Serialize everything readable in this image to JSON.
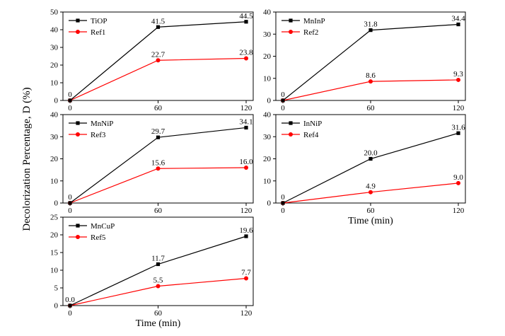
{
  "figure": {
    "ylabel": "Decolorization Percentage, D (%)"
  },
  "colors": {
    "black_series": "#000000",
    "red_series": "#ff0000"
  },
  "chart_data": [
    {
      "type": "line",
      "x": [
        0,
        60,
        120
      ],
      "xticks": [
        "0",
        "60",
        "120"
      ],
      "xlabel": "",
      "ylim": [
        0,
        50
      ],
      "yticks": [
        "0",
        "10",
        "20",
        "30",
        "40",
        "50"
      ],
      "legend_position": "top-left",
      "series": [
        {
          "name": "TiOP",
          "color": "#000000",
          "marker": "square",
          "values": [
            0,
            41.5,
            44.5
          ],
          "labels": [
            "0",
            "41.5",
            "44.5"
          ]
        },
        {
          "name": "Ref1",
          "color": "#ff0000",
          "marker": "circle",
          "values": [
            0,
            22.7,
            23.8
          ],
          "labels": [
            "",
            "22.7",
            "23.8"
          ]
        }
      ]
    },
    {
      "type": "line",
      "x": [
        0,
        60,
        120
      ],
      "xticks": [
        "0",
        "60",
        "120"
      ],
      "xlabel": "",
      "ylim": [
        0,
        40
      ],
      "yticks": [
        "0",
        "10",
        "20",
        "30",
        "40"
      ],
      "legend_position": "top-left",
      "series": [
        {
          "name": "MnInP",
          "color": "#000000",
          "marker": "square",
          "values": [
            0,
            31.8,
            34.4
          ],
          "labels": [
            "0",
            "31.8",
            "34.4"
          ]
        },
        {
          "name": "Ref2",
          "color": "#ff0000",
          "marker": "circle",
          "values": [
            0,
            8.6,
            9.3
          ],
          "labels": [
            "",
            "8.6",
            "9.3"
          ]
        }
      ]
    },
    {
      "type": "line",
      "x": [
        0,
        60,
        120
      ],
      "xticks": [
        "0",
        "60",
        "120"
      ],
      "xlabel": "",
      "ylim": [
        0,
        40
      ],
      "yticks": [
        "0",
        "10",
        "20",
        "30",
        "40"
      ],
      "legend_position": "top-left",
      "series": [
        {
          "name": "MnNiP",
          "color": "#000000",
          "marker": "square",
          "values": [
            0,
            29.7,
            34.1
          ],
          "labels": [
            "0",
            "29.7",
            "34.1"
          ]
        },
        {
          "name": "Ref3",
          "color": "#ff0000",
          "marker": "circle",
          "values": [
            0,
            15.6,
            16.0
          ],
          "labels": [
            "",
            "15.6",
            "16.0"
          ]
        }
      ]
    },
    {
      "type": "line",
      "x": [
        0,
        60,
        120
      ],
      "xticks": [
        "0",
        "60",
        "120"
      ],
      "xlabel": "Time (min)",
      "ylim": [
        0,
        40
      ],
      "yticks": [
        "0",
        "10",
        "20",
        "30",
        "40"
      ],
      "legend_position": "top-left",
      "series": [
        {
          "name": "InNiP",
          "color": "#000000",
          "marker": "square",
          "values": [
            0,
            20.0,
            31.6
          ],
          "labels": [
            "0",
            "20.0",
            "31.6"
          ]
        },
        {
          "name": "Ref4",
          "color": "#ff0000",
          "marker": "circle",
          "values": [
            0,
            4.9,
            9.0
          ],
          "labels": [
            "",
            "4.9",
            "9.0"
          ]
        }
      ]
    },
    {
      "type": "line",
      "x": [
        0,
        60,
        120
      ],
      "xticks": [
        "0",
        "60",
        "120"
      ],
      "xlabel": "Time (min)",
      "ylim": [
        0,
        25
      ],
      "yticks": [
        "0",
        "5",
        "10",
        "15",
        "20",
        "25"
      ],
      "legend_position": "top-left",
      "series": [
        {
          "name": "MnCuP",
          "color": "#000000",
          "marker": "square",
          "values": [
            0,
            11.7,
            19.6
          ],
          "labels": [
            "0.0",
            "11.7",
            "19.6"
          ]
        },
        {
          "name": "Ref5",
          "color": "#ff0000",
          "marker": "circle",
          "values": [
            0,
            5.5,
            7.7
          ],
          "labels": [
            "",
            "5.5",
            "7.7"
          ]
        }
      ]
    }
  ]
}
